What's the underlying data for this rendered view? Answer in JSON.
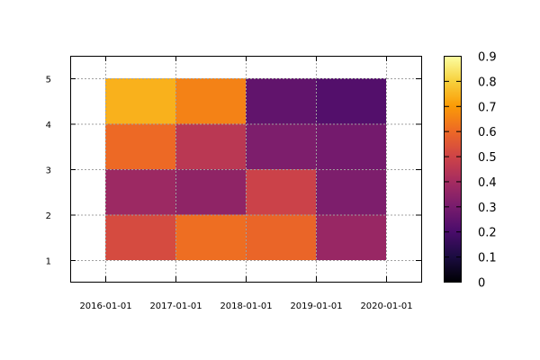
{
  "chart_data": {
    "type": "heatmap",
    "title": "",
    "xlabel": "",
    "ylabel": "",
    "x_categories": [
      "2016-01-01",
      "2017-01-01",
      "2018-01-01",
      "2019-01-01",
      "2020-01-01"
    ],
    "y_ticks": [
      1,
      2,
      3,
      4,
      5
    ],
    "x_cells": [
      "2016-01-01",
      "2017-01-01",
      "2018-01-01",
      "2019-01-01"
    ],
    "y_cells": [
      1,
      2,
      3,
      4
    ],
    "values": [
      [
        0.52,
        0.61,
        0.59,
        0.37
      ],
      [
        0.38,
        0.35,
        0.49,
        0.31
      ],
      [
        0.6,
        0.45,
        0.31,
        0.29
      ],
      [
        0.74,
        0.65,
        0.25,
        0.22
      ]
    ],
    "colorbar": {
      "colormap": "inferno",
      "range": [
        0,
        0.9
      ],
      "ticks": [
        "0",
        "0.1",
        "0.2",
        "0.3",
        "0.4",
        "0.5",
        "0.6",
        "0.7",
        "0.8",
        "0.9"
      ]
    },
    "grid": true,
    "legend": "colorbar-right"
  }
}
